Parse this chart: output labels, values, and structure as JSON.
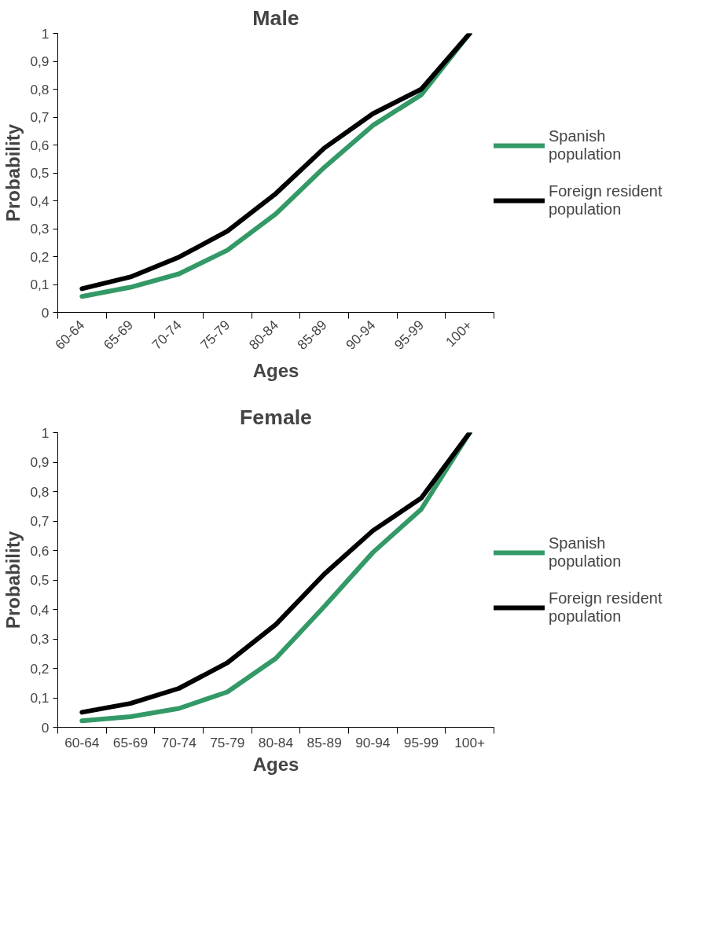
{
  "chart_data": [
    {
      "type": "line",
      "title": "Male",
      "xlabel": "Ages",
      "ylabel": "Probability",
      "categories": [
        "60-64",
        "65-69",
        "70-74",
        "75-79",
        "80-84",
        "85-89",
        "90-94",
        "95-99",
        "100+"
      ],
      "series": [
        {
          "name": "Spanish population",
          "color": "#339966",
          "values": [
            0.057,
            0.09,
            0.138,
            0.223,
            0.353,
            0.52,
            0.67,
            0.78,
            1
          ]
        },
        {
          "name": "Foreign resident population",
          "color": "#000000",
          "values": [
            0.085,
            0.127,
            0.198,
            0.291,
            0.426,
            0.589,
            0.712,
            0.8,
            1
          ]
        }
      ],
      "ylim": [
        0,
        1
      ],
      "yticks": [
        0,
        {
          "value": 0.1,
          "label": "0,1"
        },
        {
          "value": 0.2,
          "label": "0,2"
        },
        {
          "value": 0.3,
          "label": "0,3"
        },
        {
          "value": 0.4,
          "label": "0,4"
        },
        {
          "value": 0.5,
          "label": "0,5"
        },
        {
          "value": 0.6,
          "label": "0,6"
        },
        {
          "value": 0.7,
          "label": "0,7"
        },
        {
          "value": 0.8,
          "label": "0,8"
        },
        {
          "value": 0.9,
          "label": "0,9"
        },
        1
      ],
      "grid": false,
      "legend": "right",
      "marker": "none",
      "line_style": "solid"
    },
    {
      "type": "line",
      "title": "Female",
      "xlabel": "Ages",
      "ylabel": "Probability",
      "categories": [
        "60-64",
        "65-69",
        "70-74",
        "75-79",
        "80-84",
        "85-89",
        "90-94",
        "95-99",
        "100+"
      ],
      "series": [
        {
          "name": "Spanish population",
          "color": "#339966",
          "values": [
            0.022,
            0.036,
            0.064,
            0.12,
            0.234,
            0.41,
            0.593,
            0.74,
            1
          ]
        },
        {
          "name": "Foreign resident population",
          "color": "#000000",
          "values": [
            0.051,
            0.081,
            0.132,
            0.219,
            0.349,
            0.52,
            0.667,
            0.778,
            1
          ]
        }
      ],
      "ylim": [
        0,
        1
      ],
      "yticks": [
        0,
        {
          "value": 0.1,
          "label": "0,1"
        },
        {
          "value": 0.2,
          "label": "0,2"
        },
        {
          "value": 0.3,
          "label": "0,3"
        },
        {
          "value": 0.4,
          "label": "0,4"
        },
        {
          "value": 0.5,
          "label": "0,5"
        },
        {
          "value": 0.6,
          "label": "0,6"
        },
        {
          "value": 0.7,
          "label": "0,7"
        },
        {
          "value": 0.8,
          "label": "0,8"
        },
        {
          "value": 0.9,
          "label": "0,9"
        },
        1
      ],
      "grid": false,
      "legend": "right",
      "marker": "none",
      "line_style": "solid"
    }
  ]
}
